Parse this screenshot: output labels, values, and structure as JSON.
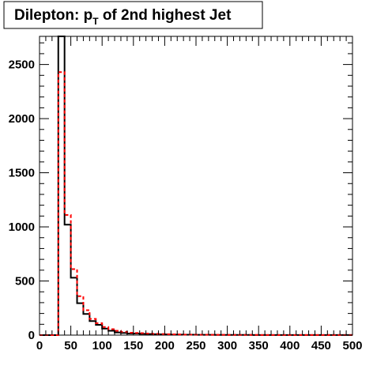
{
  "chart_data": {
    "type": "histogram",
    "title": {
      "prefix": "Dilepton: p",
      "subscript": "T",
      "suffix": " of 2nd highest Jet"
    },
    "xlabel": "",
    "ylabel": "",
    "xlim": [
      0,
      500
    ],
    "ylim": [
      0,
      2760
    ],
    "bin_width": 10,
    "grid": false,
    "legend": "none",
    "x_ticks": [
      0,
      50,
      100,
      150,
      200,
      250,
      300,
      350,
      400,
      450,
      500
    ],
    "y_ticks": [
      0,
      500,
      1000,
      1500,
      2000,
      2500
    ],
    "series": [
      {
        "color": "#000000",
        "line_style": "solid",
        "values": [
          0,
          0,
          0,
          2760,
          1020,
          530,
          295,
          195,
          130,
          95,
          60,
          40,
          25,
          20,
          15,
          15,
          12,
          10,
          8,
          7,
          6,
          5,
          5,
          4,
          4,
          3,
          3,
          3,
          2,
          2,
          2,
          2,
          2,
          2,
          1,
          1,
          1,
          1,
          1,
          1,
          1,
          1,
          1,
          1,
          1,
          1,
          1,
          1,
          1,
          1
        ]
      },
      {
        "color": "#ff0000",
        "line_style": "dashed",
        "values": [
          0,
          0,
          0,
          2430,
          1110,
          610,
          360,
          230,
          150,
          110,
          75,
          55,
          40,
          30,
          22,
          20,
          18,
          15,
          12,
          10,
          8,
          7,
          6,
          5,
          5,
          4,
          4,
          3,
          3,
          3,
          2,
          2,
          2,
          2,
          2,
          1,
          1,
          1,
          1,
          1,
          1,
          1,
          1,
          1,
          1,
          1,
          1,
          1,
          1,
          1
        ]
      }
    ]
  }
}
